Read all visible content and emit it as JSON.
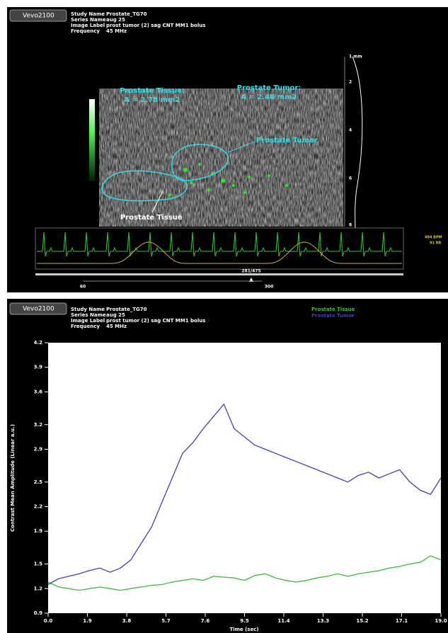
{
  "top_panel": {
    "logo": "Vevo2100",
    "info": [
      {
        "label": "Study Name",
        "value": "Prostate_TG70"
      },
      {
        "label": "Series Name",
        "value": "aug 25"
      },
      {
        "label": "Image Label",
        "value": "prost tumor (2) sag CNT MM1 bolus"
      },
      {
        "label": "Frequency",
        "value": "45 MHz"
      }
    ],
    "tissue_area_title": "Prostate Tissue:",
    "tissue_area": "A = 2.78 mm2",
    "tumor_area_title": "Prostate Tumor:",
    "tumor_area": "A = 2.48 mm2",
    "tumor_label": "Prostate Tumor",
    "tissue_label": "Prostate Tissue",
    "depth_labels": [
      "1 mm",
      "2",
      "4",
      "6",
      "8"
    ],
    "heart_rate": "494 BPM",
    "resp_rate": "91 RR",
    "frame": "281/475",
    "frame_start": "60",
    "frame_end": "300"
  },
  "bottom_panel": {
    "logo": "Vevo2100",
    "info": [
      {
        "label": "Study Name",
        "value": "Prostate_TG70"
      },
      {
        "label": "Series Name",
        "value": "aug 25"
      },
      {
        "label": "Image Label",
        "value": "prost tumor (2) sag CNT MM1 bolus"
      },
      {
        "label": "Frequency",
        "value": "45 MHz"
      }
    ]
  },
  "chart_data": {
    "type": "line",
    "x_label": "Time (sec)",
    "y_label": "Contrast Mean Amplitude (Linear a.u.)",
    "x": [
      0,
      0.5,
      1,
      1.5,
      2,
      2.5,
      3,
      3.5,
      4,
      4.5,
      5,
      5.5,
      6,
      6.5,
      7,
      7.5,
      8,
      8.5,
      9,
      9.5,
      10,
      10.5,
      11,
      11.5,
      12,
      12.5,
      13,
      13.5,
      14,
      14.5,
      15,
      15.5,
      16,
      16.5,
      17,
      17.5,
      18,
      18.5,
      19
    ],
    "series": [
      {
        "name": "Prostate Tissue",
        "color": "#3dbb3d",
        "values": [
          1.28,
          1.22,
          1.2,
          1.18,
          1.2,
          1.22,
          1.2,
          1.18,
          1.2,
          1.22,
          1.24,
          1.25,
          1.28,
          1.3,
          1.32,
          1.3,
          1.35,
          1.34,
          1.33,
          1.3,
          1.36,
          1.38,
          1.33,
          1.3,
          1.28,
          1.3,
          1.33,
          1.35,
          1.38,
          1.35,
          1.38,
          1.4,
          1.42,
          1.45,
          1.47,
          1.5,
          1.52,
          1.6,
          1.55
        ]
      },
      {
        "name": "Prostate Tumor",
        "color": "#4040b0",
        "values": [
          1.25,
          1.32,
          1.35,
          1.38,
          1.42,
          1.45,
          1.4,
          1.45,
          1.55,
          1.75,
          1.95,
          2.25,
          2.55,
          2.85,
          2.98,
          3.15,
          3.3,
          3.45,
          3.15,
          3.05,
          2.95,
          2.9,
          2.85,
          2.8,
          2.75,
          2.7,
          2.65,
          2.6,
          2.55,
          2.5,
          2.58,
          2.62,
          2.55,
          2.6,
          2.65,
          2.5,
          2.4,
          2.35,
          2.55
        ]
      }
    ],
    "xlim": [
      0,
      19
    ],
    "xticks": [
      {
        "value": 0,
        "label": "0.0"
      },
      1.9,
      3.8,
      5.7,
      7.6,
      9.5,
      11.4,
      13.3,
      15.2,
      17.1,
      {
        "value": 19,
        "label": "19.0"
      }
    ],
    "ylim": [
      0.9,
      4.2
    ],
    "yticks": [
      0.9,
      1.2,
      1.5,
      1.9,
      2.2,
      2.5,
      2.9,
      3.2,
      3.6,
      3.9,
      4.2
    ],
    "legend": "top-right"
  }
}
